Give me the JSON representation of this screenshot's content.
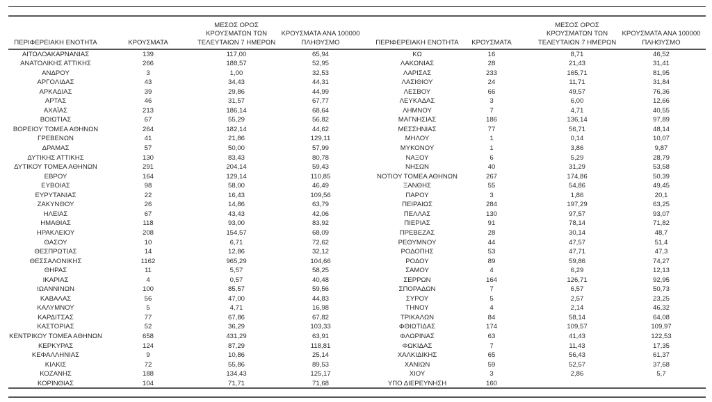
{
  "headers": [
    "ΠΕΡΙΦΕΡΕΙΑΚΗ ΕΝΟΤΗΤΑ",
    "ΚΡΟΥΣΜΑΤΑ",
    "ΜΕΣΟΣ ΟΡΟΣ ΚΡΟΥΣΜΑΤΩΝ ΤΩΝ ΤΕΛΕΥΤΑΙΩΝ 7 ΗΜΕΡΩΝ",
    "ΚΡΟΥΣΜΑΤΑ ΑΝΑ 100000 ΠΛΗΘΥΣΜΟ"
  ],
  "header_lines": {
    "mean": [
      "ΜΕΣΟΣ ΟΡΟΣ",
      "ΚΡΟΥΣΜΑΤΩΝ ΤΩΝ",
      "ΤΕΛΕΥΤΑΙΩΝ 7 ΗΜΕΡΩΝ"
    ],
    "per100k": [
      "ΚΡΟΥΣΜΑΤΑ ΑΝΑ 100000",
      "ΠΛΗΘΥΣΜΟ"
    ]
  },
  "left_rows": [
    [
      "ΑΙΤΩΛΟΑΚΑΡΝΑΝΙΑΣ",
      "139",
      "117,00",
      "65,94"
    ],
    [
      "ΑΝΑΤΟΛΙΚΗΣ ΑΤΤΙΚΗΣ",
      "266",
      "188,57",
      "52,95"
    ],
    [
      "ΑΝΔΡΟΥ",
      "3",
      "1,00",
      "32,53"
    ],
    [
      "ΑΡΓΟΛΙΔΑΣ",
      "43",
      "34,43",
      "44,31"
    ],
    [
      "ΑΡΚΑΔΙΑΣ",
      "39",
      "29,86",
      "44,99"
    ],
    [
      "ΑΡΤΑΣ",
      "46",
      "31,57",
      "67,77"
    ],
    [
      "ΑΧΑΪΑΣ",
      "213",
      "186,14",
      "68,64"
    ],
    [
      "ΒΟΙΩΤΙΑΣ",
      "67",
      "55,29",
      "56,82"
    ],
    [
      "ΒΟΡΕΙΟΥ ΤΟΜΕΑ ΑΘΗΝΩΝ",
      "264",
      "182,14",
      "44,62"
    ],
    [
      "ΓΡΕΒΕΝΩΝ",
      "41",
      "21,86",
      "129,11"
    ],
    [
      "ΔΡΑΜΑΣ",
      "57",
      "50,00",
      "57,99"
    ],
    [
      "ΔΥΤΙΚΗΣ ΑΤΤΙΚΗΣ",
      "130",
      "83,43",
      "80,78"
    ],
    [
      "ΔΥΤΙΚΟΥ ΤΟΜΕΑ ΑΘΗΝΩΝ",
      "291",
      "204,14",
      "59,43"
    ],
    [
      "ΕΒΡΟΥ",
      "164",
      "129,14",
      "110,85"
    ],
    [
      "ΕΥΒΟΙΑΣ",
      "98",
      "58,00",
      "46,49"
    ],
    [
      "ΕΥΡΥΤΑΝΙΑΣ",
      "22",
      "16,43",
      "109,56"
    ],
    [
      "ΖΑΚΥΝΘΟΥ",
      "26",
      "14,86",
      "63,79"
    ],
    [
      "ΗΛΕΙΑΣ",
      "67",
      "43,43",
      "42,06"
    ],
    [
      "ΗΜΑΘΙΑΣ",
      "118",
      "93,00",
      "83,92"
    ],
    [
      "ΗΡΑΚΛΕΙΟΥ",
      "208",
      "154,57",
      "68,09"
    ],
    [
      "ΘΑΣΟΥ",
      "10",
      "6,71",
      "72,62"
    ],
    [
      "ΘΕΣΠΡΩΤΙΑΣ",
      "14",
      "12,86",
      "32,12"
    ],
    [
      "ΘΕΣΣΑΛΟΝΙΚΗΣ",
      "1162",
      "965,29",
      "104,66"
    ],
    [
      "ΘΗΡΑΣ",
      "11",
      "5,57",
      "58,25"
    ],
    [
      "ΙΚΑΡΙΑΣ",
      "4",
      "0,57",
      "40,48"
    ],
    [
      "ΙΩΑΝΝΙΝΩΝ",
      "100",
      "85,57",
      "59,56"
    ],
    [
      "ΚΑΒΑΛΑΣ",
      "56",
      "47,00",
      "44,83"
    ],
    [
      "ΚΑΛΥΜΝΟΥ",
      "5",
      "4,71",
      "16,98"
    ],
    [
      "ΚΑΡΔΙΤΣΑΣ",
      "77",
      "67,86",
      "67,82"
    ],
    [
      "ΚΑΣΤΟΡΙΑΣ",
      "52",
      "36,29",
      "103,33"
    ],
    [
      "ΚΕΝΤΡΙΚΟΥ ΤΟΜΕΑ ΑΘΗΝΩΝ",
      "658",
      "431,29",
      "63,91"
    ],
    [
      "ΚΕΡΚΥΡΑΣ",
      "124",
      "87,29",
      "118,81"
    ],
    [
      "ΚΕΦΑΛΛΗΝΙΑΣ",
      "9",
      "10,86",
      "25,14"
    ],
    [
      "ΚΙΛΚΙΣ",
      "72",
      "55,86",
      "89,53"
    ],
    [
      "ΚΟΖΑΝΗΣ",
      "188",
      "134,43",
      "125,17"
    ],
    [
      "ΚΟΡΙΝΘΙΑΣ",
      "104",
      "71,71",
      "71,68"
    ]
  ],
  "right_rows": [
    [
      "ΚΩ",
      "16",
      "8,71",
      "46,52"
    ],
    [
      "ΛΑΚΩΝΙΑΣ",
      "28",
      "21,43",
      "31,41"
    ],
    [
      "ΛΑΡΙΣΑΣ",
      "233",
      "165,71",
      "81,95"
    ],
    [
      "ΛΑΣΙΘΙΟΥ",
      "24",
      "11,71",
      "31,84"
    ],
    [
      "ΛΕΣΒΟΥ",
      "66",
      "49,57",
      "76,36"
    ],
    [
      "ΛΕΥΚΑΔΑΣ",
      "3",
      "6,00",
      "12,66"
    ],
    [
      "ΛΗΜΝΟΥ",
      "7",
      "4,71",
      "40,55"
    ],
    [
      "ΜΑΓΝΗΣΙΑΣ",
      "186",
      "136,14",
      "97,89"
    ],
    [
      "ΜΕΣΣΗΝΙΑΣ",
      "77",
      "56,71",
      "48,14"
    ],
    [
      "ΜΗΛΟΥ",
      "1",
      "0,14",
      "10,07"
    ],
    [
      "ΜΥΚΟΝΟΥ",
      "1",
      "3,86",
      "9,87"
    ],
    [
      "ΝΑΞΟΥ",
      "6",
      "5,29",
      "28,79"
    ],
    [
      "ΝΗΣΩΝ",
      "40",
      "31,29",
      "53,58"
    ],
    [
      "ΝΟΤΙΟΥ ΤΟΜΕΑ ΑΘΗΝΩΝ",
      "267",
      "174,86",
      "50,39"
    ],
    [
      "ΞΑΝΘΗΣ",
      "55",
      "54,86",
      "49,45"
    ],
    [
      "ΠΑΡΟΥ",
      "3",
      "1,86",
      "20,1"
    ],
    [
      "ΠΕΙΡΑΙΩΣ",
      "284",
      "197,29",
      "63,25"
    ],
    [
      "ΠΕΛΛΑΣ",
      "130",
      "97,57",
      "93,07"
    ],
    [
      "ΠΙΕΡΙΑΣ",
      "91",
      "78,14",
      "71,82"
    ],
    [
      "ΠΡΕΒΕΖΑΣ",
      "28",
      "30,14",
      "48,7"
    ],
    [
      "ΡΕΘΥΜΝΟΥ",
      "44",
      "47,57",
      "51,4"
    ],
    [
      "ΡΟΔΟΠΗΣ",
      "53",
      "47,71",
      "47,3"
    ],
    [
      "ΡΟΔΟΥ",
      "89",
      "59,86",
      "74,27"
    ],
    [
      "ΣΑΜΟΥ",
      "4",
      "6,29",
      "12,13"
    ],
    [
      "ΣΕΡΡΩΝ",
      "164",
      "126,71",
      "92,95"
    ],
    [
      "ΣΠΟΡΑΔΩΝ",
      "7",
      "6,57",
      "50,73"
    ],
    [
      "ΣΥΡΟΥ",
      "5",
      "2,57",
      "23,25"
    ],
    [
      "ΤΗΝΟΥ",
      "4",
      "2,14",
      "46,32"
    ],
    [
      "ΤΡΙΚΑΛΩΝ",
      "84",
      "58,14",
      "64,08"
    ],
    [
      "ΦΘΙΩΤΙΔΑΣ",
      "174",
      "109,57",
      "109,97"
    ],
    [
      "ΦΛΩΡΙΝΑΣ",
      "63",
      "41,43",
      "122,53"
    ],
    [
      "ΦΩΚΙΔΑΣ",
      "7",
      "11,43",
      "17,35"
    ],
    [
      "ΧΑΛΚΙΔΙΚΗΣ",
      "65",
      "56,43",
      "61,37"
    ],
    [
      "ΧΑΝΙΩΝ",
      "59",
      "52,57",
      "37,68"
    ],
    [
      "ΧΙΟΥ",
      "3",
      "2,86",
      "5,7"
    ],
    [
      "ΥΠΟ ΔΙΕΡΕΥΝΗΣΗ",
      "160",
      "",
      ""
    ]
  ]
}
